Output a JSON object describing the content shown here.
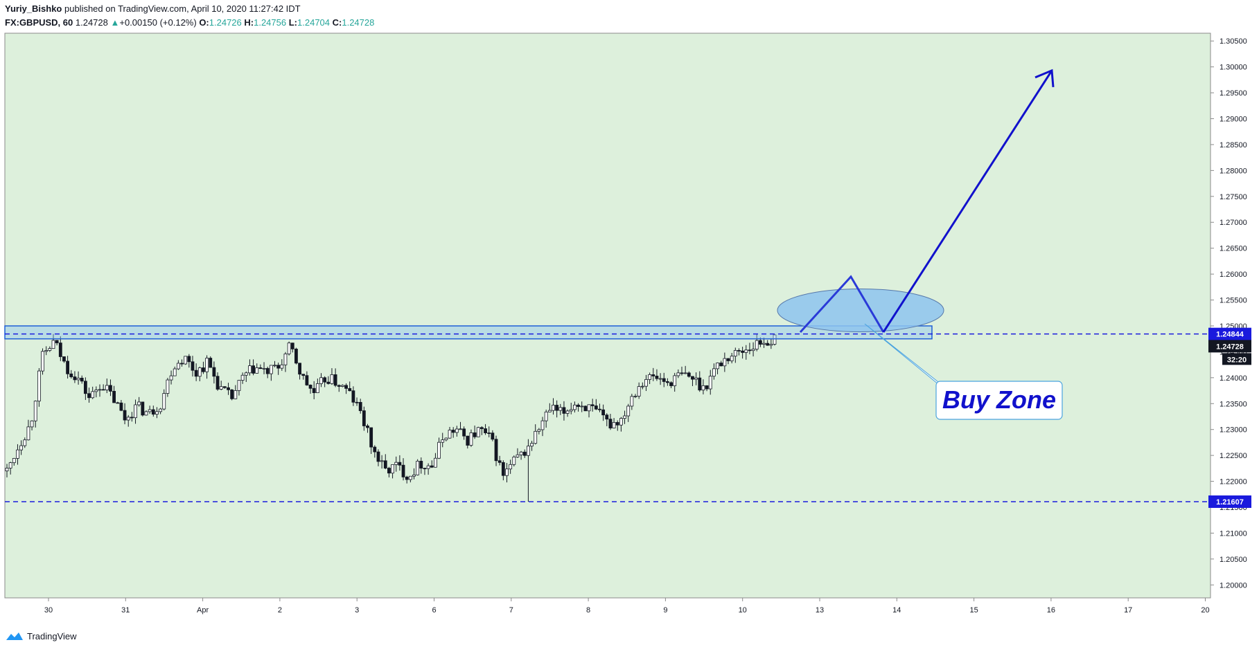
{
  "header": {
    "author": "Yuriy_Bishko",
    "published_text": " published on TradingView.com, April 10, 2020 11:27:42 IDT",
    "symbol": "FX:GBPUSD, 60",
    "price": "1.24728",
    "change_arrow": "▲",
    "change": "+0.00150 (+0.12%)",
    "o_label": "O:",
    "o_value": "1.24726",
    "h_label": "H:",
    "h_value": "1.24756",
    "l_label": "L:",
    "l_value": "1.24704",
    "c_label": "C:",
    "c_value": "1.24728"
  },
  "footer": {
    "brand": "TradingView"
  },
  "colors": {
    "background": "#ddf0dc",
    "zone_line": "#1a1add",
    "zone_fill": "#8ec4ee",
    "candle": "#131722"
  },
  "chart_data": {
    "type": "candlestick",
    "symbol": "GBPUSD",
    "interval": "60",
    "ylim": [
      1.1975,
      1.3065
    ],
    "y_ticks": [
      "1.30500",
      "1.30000",
      "1.29500",
      "1.29000",
      "1.28500",
      "1.28000",
      "1.27500",
      "1.27000",
      "1.26500",
      "1.26000",
      "1.25500",
      "1.25000",
      "1.24500",
      "1.24000",
      "1.23500",
      "1.23000",
      "1.22500",
      "1.22000",
      "1.21500",
      "1.21000",
      "1.20500",
      "1.20000"
    ],
    "x_ticks": [
      "30",
      "31",
      "Apr",
      "2",
      "3",
      "6",
      "7",
      "8",
      "9",
      "10",
      "13",
      "14",
      "15",
      "16",
      "17",
      "20"
    ],
    "price_labels": {
      "resistance": "1.24844",
      "current": "1.24728",
      "countdown": "32:20",
      "support": "1.21607"
    },
    "resistance_level": 1.24844,
    "support_level": 1.21607,
    "buy_zone_range": [
      1.2475,
      1.25
    ],
    "annotation": "Buy Zone",
    "path": [
      [
        0.0,
        1.222
      ],
      [
        1.0,
        1.227
      ],
      [
        2.0,
        1.231
      ],
      [
        3.0,
        1.244
      ],
      [
        4.0,
        1.247
      ],
      [
        5.0,
        1.242
      ],
      [
        6.0,
        1.24
      ],
      [
        7.0,
        1.236
      ],
      [
        8.0,
        1.239
      ],
      [
        9.0,
        1.236
      ],
      [
        10.0,
        1.232
      ],
      [
        11.0,
        1.2345
      ],
      [
        12.0,
        1.233
      ],
      [
        13.0,
        1.235
      ],
      [
        14.0,
        1.242
      ],
      [
        15.0,
        1.244
      ],
      [
        16.0,
        1.241
      ],
      [
        17.0,
        1.243
      ],
      [
        18.0,
        1.238
      ],
      [
        19.0,
        1.236
      ],
      [
        20.0,
        1.24
      ],
      [
        21.0,
        1.242
      ],
      [
        22.0,
        1.241
      ],
      [
        23.0,
        1.242
      ],
      [
        24.0,
        1.246
      ],
      [
        25.0,
        1.24
      ],
      [
        26.0,
        1.237
      ],
      [
        27.0,
        1.24
      ],
      [
        28.0,
        1.239
      ],
      [
        29.0,
        1.237
      ],
      [
        30.0,
        1.233
      ],
      [
        31.0,
        1.226
      ],
      [
        32.0,
        1.222
      ],
      [
        33.0,
        1.223
      ],
      [
        34.0,
        1.221
      ],
      [
        35.0,
        1.2235
      ],
      [
        36.0,
        1.223
      ],
      [
        37.0,
        1.229
      ],
      [
        38.0,
        1.23
      ],
      [
        39.0,
        1.228
      ],
      [
        40.0,
        1.23
      ],
      [
        41.0,
        1.228
      ],
      [
        42.0,
        1.221
      ],
      [
        43.0,
        1.224
      ],
      [
        44.0,
        1.226
      ],
      [
        45.0,
        1.23
      ],
      [
        46.0,
        1.234
      ],
      [
        47.0,
        1.233
      ],
      [
        48.0,
        1.235
      ],
      [
        49.0,
        1.2345
      ],
      [
        50.0,
        1.233
      ],
      [
        51.0,
        1.231
      ],
      [
        52.0,
        1.232
      ],
      [
        53.0,
        1.237
      ],
      [
        54.0,
        1.24
      ],
      [
        55.0,
        1.24
      ],
      [
        56.0,
        1.239
      ],
      [
        57.0,
        1.2405
      ],
      [
        58.0,
        1.24
      ],
      [
        59.0,
        1.238
      ],
      [
        60.0,
        1.242
      ],
      [
        61.0,
        1.244
      ],
      [
        62.0,
        1.245
      ],
      [
        63.0,
        1.246
      ],
      [
        64.0,
        1.247
      ],
      [
        65.0,
        1.2472
      ]
    ]
  }
}
